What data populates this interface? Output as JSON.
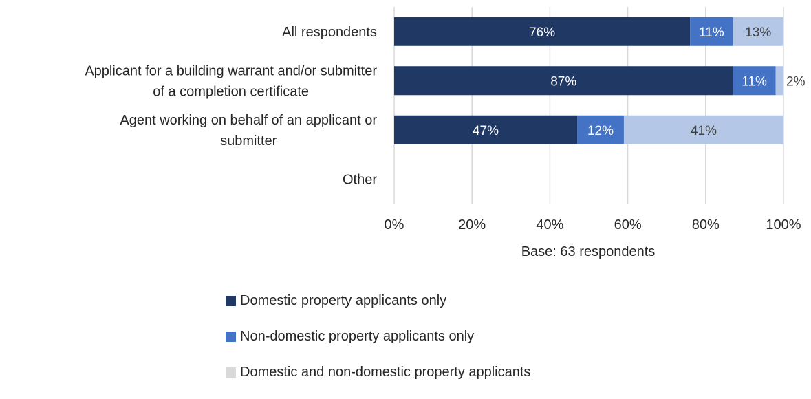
{
  "chart_data": {
    "type": "bar",
    "orientation": "horizontal",
    "stacked": true,
    "percent": true,
    "categories": [
      [
        "All respondents"
      ],
      [
        "Applicant for a building warrant and/or submitter",
        "of a completion certificate"
      ],
      [
        "Agent working on behalf of an applicant or",
        "submitter"
      ],
      [
        "Other"
      ]
    ],
    "series": [
      {
        "name": "Domestic property applicants only",
        "color": "#203864",
        "label_color": "#ffffff",
        "values": [
          76,
          87,
          47,
          0
        ],
        "labels": [
          "76%",
          "87%",
          "47%",
          ""
        ]
      },
      {
        "name": "Non-domestic property applicants only",
        "color": "#4472c4",
        "label_color": "#ffffff",
        "values": [
          11,
          11,
          12,
          0
        ],
        "labels": [
          "11%",
          "11%",
          "12%",
          ""
        ]
      },
      {
        "name": "Domestic and non-domestic property applicants",
        "color": "#b4c7e7",
        "label_color": "#404040",
        "values": [
          13,
          2,
          41,
          0
        ],
        "labels": [
          "13%",
          "2%",
          "41%",
          ""
        ]
      }
    ],
    "xlim": [
      0,
      100
    ],
    "x_ticks": [
      "0%",
      "20%",
      "40%",
      "60%",
      "80%",
      "100%"
    ],
    "xlabel": "Base: 63 respondents",
    "grid": true,
    "legend_position": "bottom"
  },
  "legend_colors": [
    "#203864",
    "#4472c4",
    "#d9d9d9"
  ]
}
